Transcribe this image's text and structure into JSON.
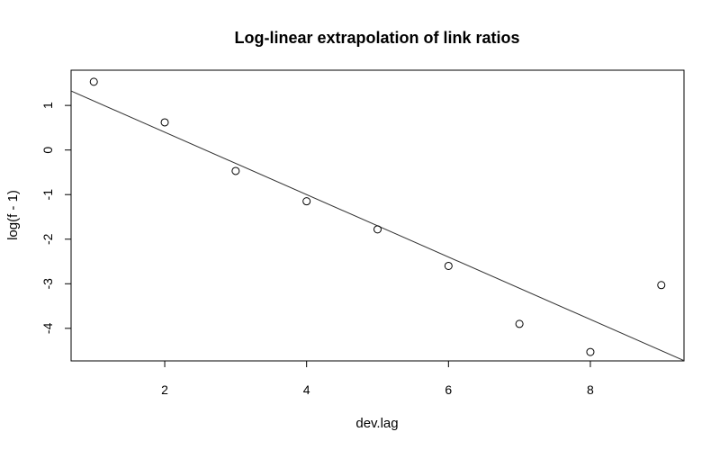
{
  "chart_data": {
    "type": "scatter",
    "title": "Log-linear extrapolation of link ratios",
    "xlabel": "dev.lag",
    "ylabel": "log(f - 1)",
    "xlim": [
      0.68,
      9.32
    ],
    "ylim": [
      -4.73,
      1.79
    ],
    "xticks": [
      2,
      4,
      6,
      8
    ],
    "yticks": [
      1,
      0,
      -1,
      -2,
      -3,
      -4
    ],
    "grid": false,
    "legend": "none",
    "points": [
      {
        "x": 1,
        "y": 1.53
      },
      {
        "x": 2,
        "y": 0.62
      },
      {
        "x": 3,
        "y": -0.47
      },
      {
        "x": 4,
        "y": -1.15
      },
      {
        "x": 5,
        "y": -1.78
      },
      {
        "x": 6,
        "y": -2.6
      },
      {
        "x": 7,
        "y": -3.9
      },
      {
        "x": 8,
        "y": -4.53
      },
      {
        "x": 9,
        "y": -3.03
      }
    ],
    "fit_line": {
      "intercept": 1.8,
      "slope": -0.7
    },
    "colors": {
      "points": "#000000",
      "line": "#333333",
      "frame": "#000000"
    }
  }
}
